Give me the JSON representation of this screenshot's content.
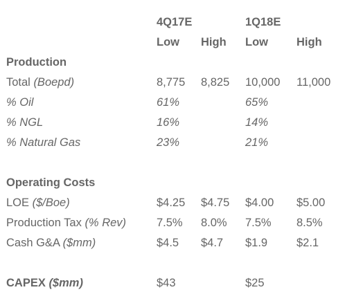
{
  "header": {
    "period_4q17e": "4Q17E",
    "period_1q18e": "1Q18E",
    "low_1": "Low",
    "high_1": "High",
    "low_2": "Low",
    "high_2": "High"
  },
  "production": {
    "heading": "Production",
    "total": {
      "label": "Total ",
      "unit": "(Boepd)",
      "q4_low": "8,775",
      "q4_high": "8,825",
      "q1_low": "10,000",
      "q1_high": "11,000"
    },
    "oil": {
      "label": "% Oil",
      "q4": "61%",
      "q1": "65%"
    },
    "ngl": {
      "label": "% NGL",
      "q4": "16%",
      "q1": "14%"
    },
    "gas": {
      "label": "% Natural Gas",
      "q4": "23%",
      "q1": "21%"
    }
  },
  "operating_costs": {
    "heading": "Operating Costs",
    "loe": {
      "label": "LOE ",
      "unit": "($/Boe)",
      "q4_low": "$4.25",
      "q4_high": "$4.75",
      "q1_low": "$4.00",
      "q1_high": "$5.00"
    },
    "production_tax": {
      "label": "Production Tax ",
      "unit": "(% Rev)",
      "q4_low": "7.5%",
      "q4_high": "8.0%",
      "q1_low": "7.5%",
      "q1_high": "8.5%"
    },
    "cash_ga": {
      "label": "Cash G&A ",
      "unit": "($mm)",
      "q4_low": "$4.5",
      "q4_high": "$4.7",
      "q1_low": "$1.9",
      "q1_high": "$2.1"
    }
  },
  "capex": {
    "label": "CAPEX ",
    "unit": "($mm)",
    "q4": "$43",
    "q1": "$25"
  }
}
